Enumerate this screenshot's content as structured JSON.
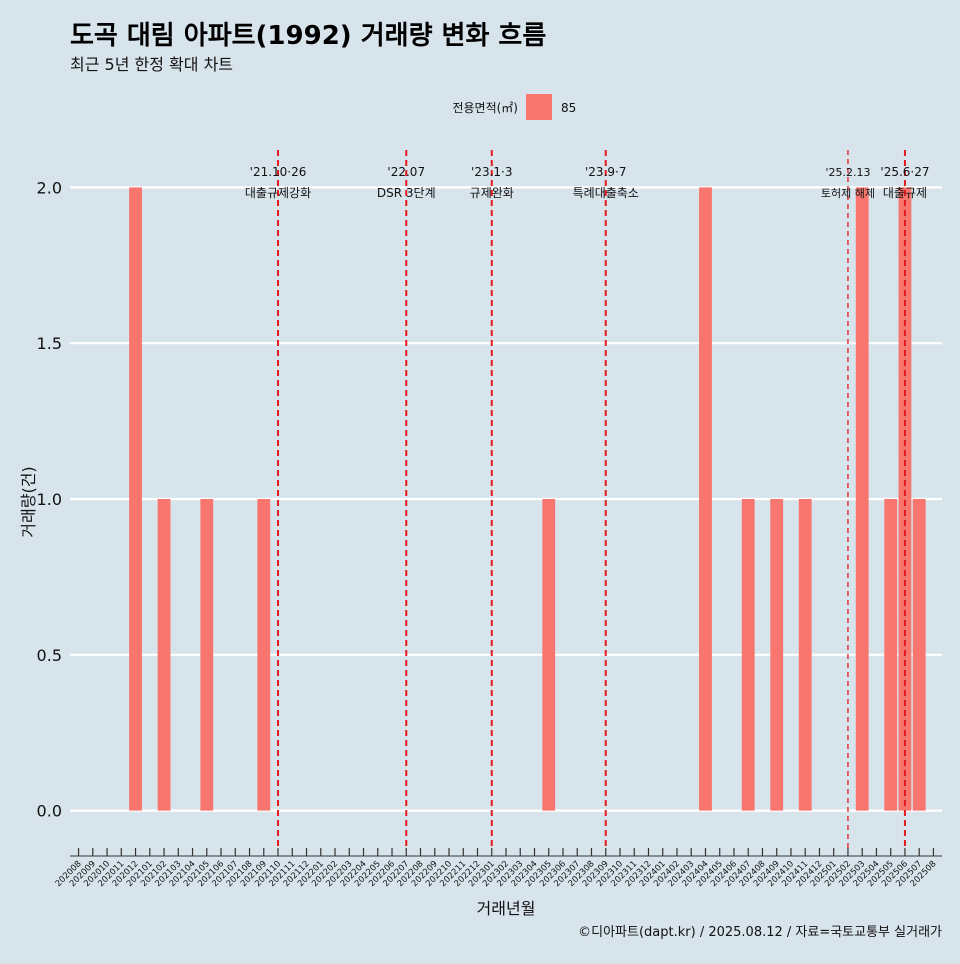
{
  "title": "도곡 대림 아파트(1992) 거래량 변화 흐름",
  "subtitle": "최근 5년 한정 확대 차트",
  "caption": "©디아파트(dapt.kr) / 2025.08.12 / 자료=국토교통부 실거래가",
  "legend": {
    "title": "전용면적(㎡)",
    "label": "85",
    "position": "top-center"
  },
  "chart_data": {
    "type": "bar",
    "xlabel": "거래년월",
    "ylabel": "거래량(건)",
    "ylim": [
      -0.12,
      2.12
    ],
    "yticks": [
      0.0,
      0.5,
      1.0,
      1.5,
      2.0
    ],
    "ytick_labels": [
      "0.0",
      "0.5",
      "1.0",
      "1.5",
      "2.0"
    ],
    "grid": true,
    "bar_color": "#f8766d",
    "marker_color": "#e41a1c",
    "categories": [
      "202008",
      "202009",
      "202010",
      "202011",
      "202012",
      "202101",
      "202102",
      "202103",
      "202104",
      "202105",
      "202106",
      "202107",
      "202108",
      "202109",
      "202110",
      "202111",
      "202112",
      "202201",
      "202202",
      "202203",
      "202204",
      "202205",
      "202206",
      "202207",
      "202208",
      "202209",
      "202210",
      "202211",
      "202212",
      "202301",
      "202302",
      "202303",
      "202304",
      "202305",
      "202306",
      "202307",
      "202308",
      "202309",
      "202310",
      "202311",
      "202312",
      "202401",
      "202402",
      "202403",
      "202404",
      "202405",
      "202406",
      "202407",
      "202408",
      "202409",
      "202410",
      "202411",
      "202412",
      "202501",
      "202502",
      "202503",
      "202504",
      "202505",
      "202506",
      "202507",
      "202508"
    ],
    "series": [
      {
        "name": "85",
        "values": [
          null,
          null,
          null,
          null,
          2,
          null,
          1,
          null,
          null,
          1,
          null,
          null,
          null,
          1,
          null,
          null,
          null,
          null,
          null,
          null,
          null,
          null,
          null,
          null,
          null,
          null,
          null,
          null,
          null,
          null,
          null,
          null,
          null,
          1,
          null,
          null,
          null,
          null,
          null,
          null,
          null,
          null,
          null,
          null,
          2,
          null,
          null,
          1,
          null,
          1,
          null,
          1,
          null,
          null,
          null,
          2,
          null,
          1,
          2,
          1,
          null
        ]
      }
    ],
    "annotations": [
      {
        "x": "202110",
        "date": "'21.10·26",
        "label": "대출규제강화",
        "style": "major"
      },
      {
        "x": "202207",
        "date": "'22.07",
        "label": "DSR 3단계",
        "style": "major"
      },
      {
        "x": "202301",
        "date": "'23.1·3",
        "label": "규제완화",
        "style": "major"
      },
      {
        "x": "202309",
        "date": "'23.9·7",
        "label": "특례대출축소",
        "style": "major"
      },
      {
        "x": "202502",
        "date": "'25.2.13",
        "label": "토허제 해제",
        "style": "minor"
      },
      {
        "x": "202506",
        "date": "'25.6·27",
        "label": "대출규제",
        "style": "major"
      }
    ]
  }
}
